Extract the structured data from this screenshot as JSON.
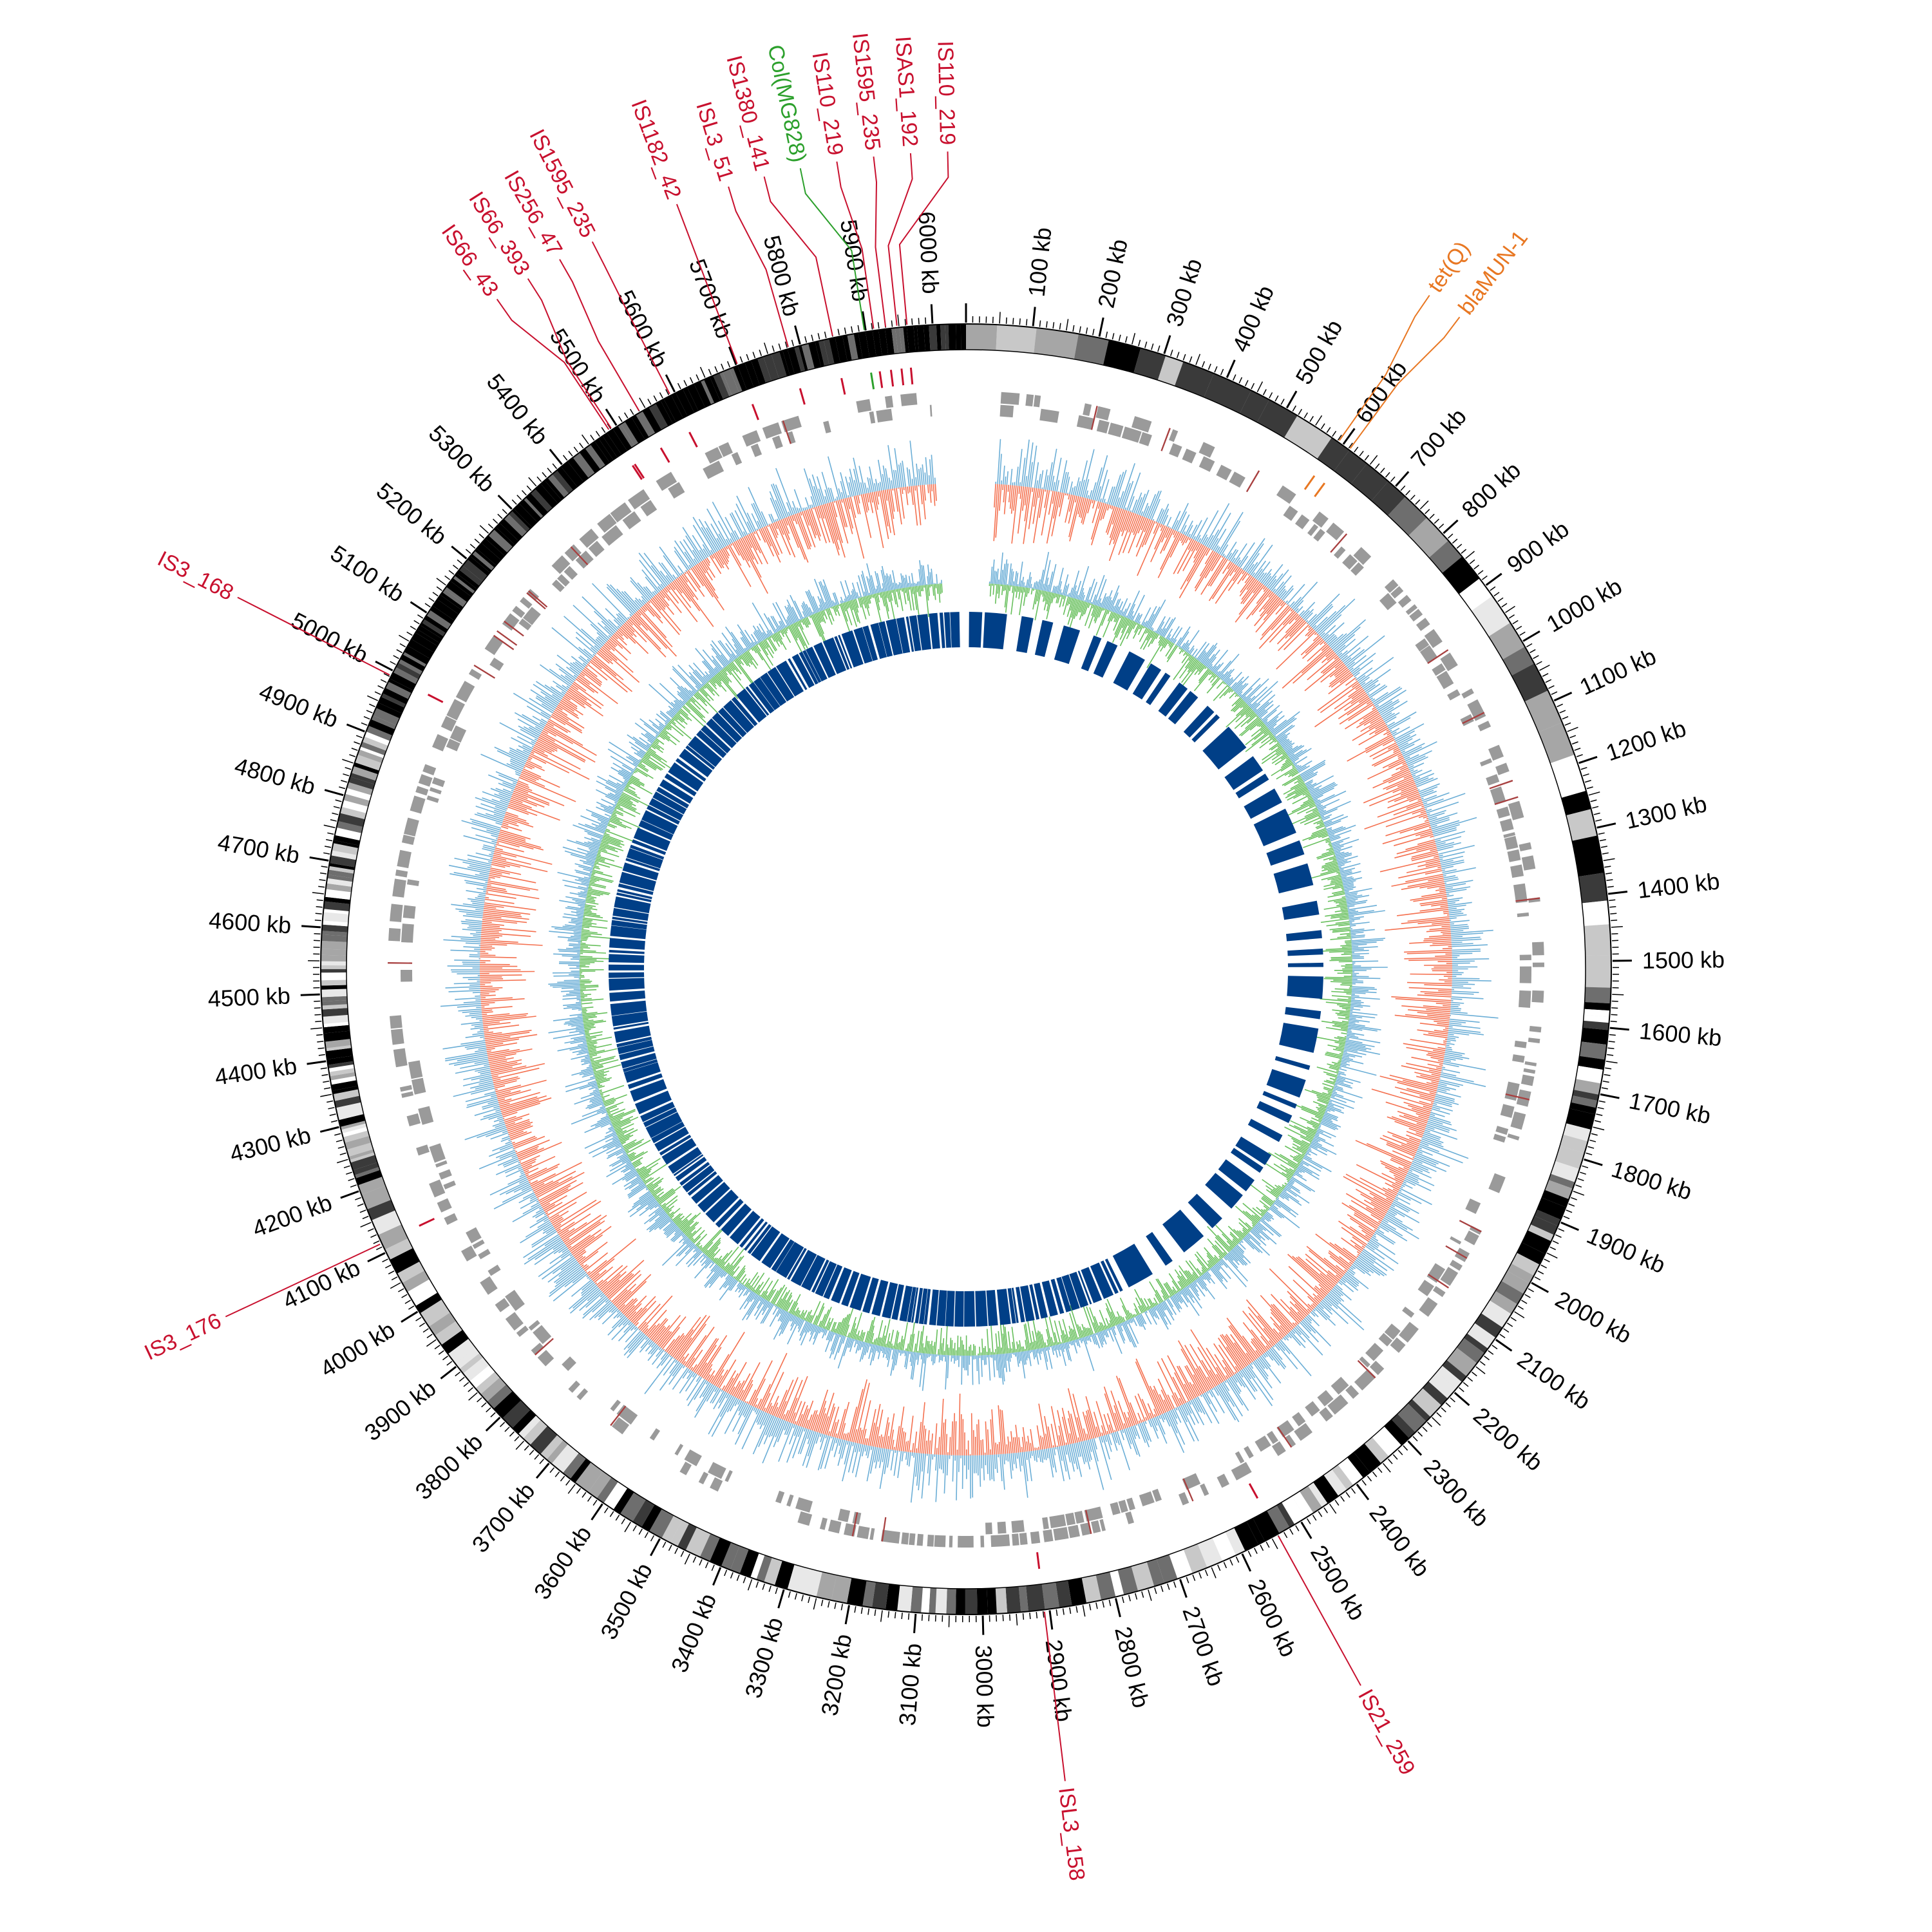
{
  "diagram": {
    "type": "circular-genome-map",
    "genome_length_kb": 6050,
    "tick_unit": "kb",
    "major_tick_labels": [
      "100 kb",
      "200 kb",
      "300 kb",
      "400 kb",
      "500 kb",
      "600 kb",
      "700 kb",
      "800 kb",
      "900 kb",
      "1000 kb",
      "1100 kb",
      "1200 kb",
      "1300 kb",
      "1400 kb",
      "1500 kb",
      "1600 kb",
      "1700 kb",
      "1800 kb",
      "1900 kb",
      "2000 kb",
      "2100 kb",
      "2200 kb",
      "2300 kb",
      "2400 kb",
      "2500 kb",
      "2600 kb",
      "2700 kb",
      "2800 kb",
      "2900 kb",
      "3000 kb",
      "3100 kb",
      "3200 kb",
      "3300 kb",
      "3400 kb",
      "3500 kb",
      "3600 kb",
      "3700 kb",
      "3800 kb",
      "3900 kb",
      "4000 kb",
      "4100 kb",
      "4200 kb",
      "4300 kb",
      "4400 kb",
      "4500 kb",
      "4600 kb",
      "4700 kb",
      "4800 kb",
      "4900 kb",
      "5000 kb",
      "5100 kb",
      "5200 kb",
      "5300 kb",
      "5400 kb",
      "5500 kb",
      "5600 kb",
      "5700 kb",
      "5800 kb",
      "5900 kb",
      "6000 kb"
    ],
    "annotations": [
      {
        "label": "tet(Q)",
        "position_kb": 592,
        "category": "resistance"
      },
      {
        "label": "blaMUN-1",
        "position_kb": 612,
        "category": "resistance"
      },
      {
        "label": "IS21_259",
        "position_kb": 2540,
        "category": "insertion"
      },
      {
        "label": "ISL3_158",
        "position_kb": 2908,
        "category": "insertion"
      },
      {
        "label": "IS3_176",
        "position_kb": 4115,
        "category": "insertion"
      },
      {
        "label": "IS3_168",
        "position_kb": 4992,
        "category": "insertion"
      },
      {
        "label": "IS66_43",
        "position_kb": 5487,
        "category": "insertion"
      },
      {
        "label": "IS66_393",
        "position_kb": 5491,
        "category": "insertion"
      },
      {
        "label": "IS256_47",
        "position_kb": 5540,
        "category": "insertion"
      },
      {
        "label": "IS1595_235",
        "position_kb": 5592,
        "category": "insertion"
      },
      {
        "label": "IS1182_42",
        "position_kb": 5702,
        "category": "insertion"
      },
      {
        "label": "ISL3_51",
        "position_kb": 5782,
        "category": "insertion"
      },
      {
        "label": "IS1380_141",
        "position_kb": 5850,
        "category": "insertion"
      },
      {
        "label": "Col(MG828)",
        "position_kb": 5898,
        "category": "plasmid"
      },
      {
        "label": "IS110_219",
        "position_kb": 5912,
        "category": "insertion"
      },
      {
        "label": "IS1595_235",
        "position_kb": 5930,
        "category": "insertion"
      },
      {
        "label": "ISAS1_192",
        "position_kb": 5947,
        "category": "insertion"
      },
      {
        "label": "IS110_219",
        "position_kb": 5962,
        "category": "insertion"
      }
    ],
    "tracks": [
      "ideogram-bands",
      "insertion-sequence-markers",
      "gene-blocks",
      "gc-skew",
      "gc-content",
      "homology-blocks"
    ],
    "colors": {
      "insertion": "#c8102e",
      "plasmid": "#2ca02c",
      "resistance": "#e87722",
      "gene_block": "#9a9a9a",
      "gc_skew_negative": "#f4704f",
      "gc_skew_positive": "#6baed6",
      "gc_content_positive": "#6baed6",
      "gc_content_negative": "#67bf5c",
      "homology": "#003f87",
      "ideogram_dark": "#000000"
    }
  }
}
